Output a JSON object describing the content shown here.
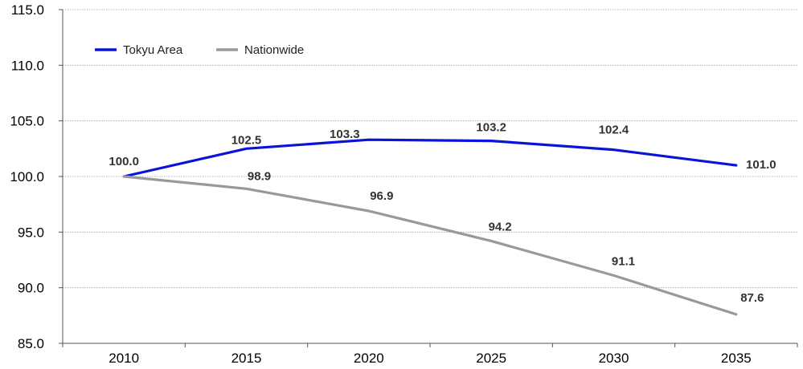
{
  "chart_data": {
    "type": "line",
    "title": "",
    "xlabel": "",
    "ylabel": "",
    "categories": [
      "2010",
      "2015",
      "2020",
      "2025",
      "2030",
      "2035"
    ],
    "ylim": [
      85.0,
      115.0
    ],
    "yticks": [
      "85.0",
      "90.0",
      "95.0",
      "100.0",
      "105.0",
      "110.0",
      "115.0"
    ],
    "grid": true,
    "legend_position": "top-left",
    "series": [
      {
        "name": "Tokyu Area",
        "color": "#0a14d8",
        "values": [
          100.0,
          102.5,
          103.3,
          103.2,
          102.4,
          101.0
        ],
        "labels": [
          "100.0",
          "102.5",
          "103.3",
          "103.2",
          "102.4",
          "101.0"
        ]
      },
      {
        "name": "Nationwide",
        "color": "#999999",
        "values": [
          100.0,
          98.9,
          96.9,
          94.2,
          91.1,
          87.6
        ],
        "labels": [
          "",
          "98.9",
          "96.9",
          "94.2",
          "91.1",
          "87.6"
        ]
      }
    ]
  }
}
